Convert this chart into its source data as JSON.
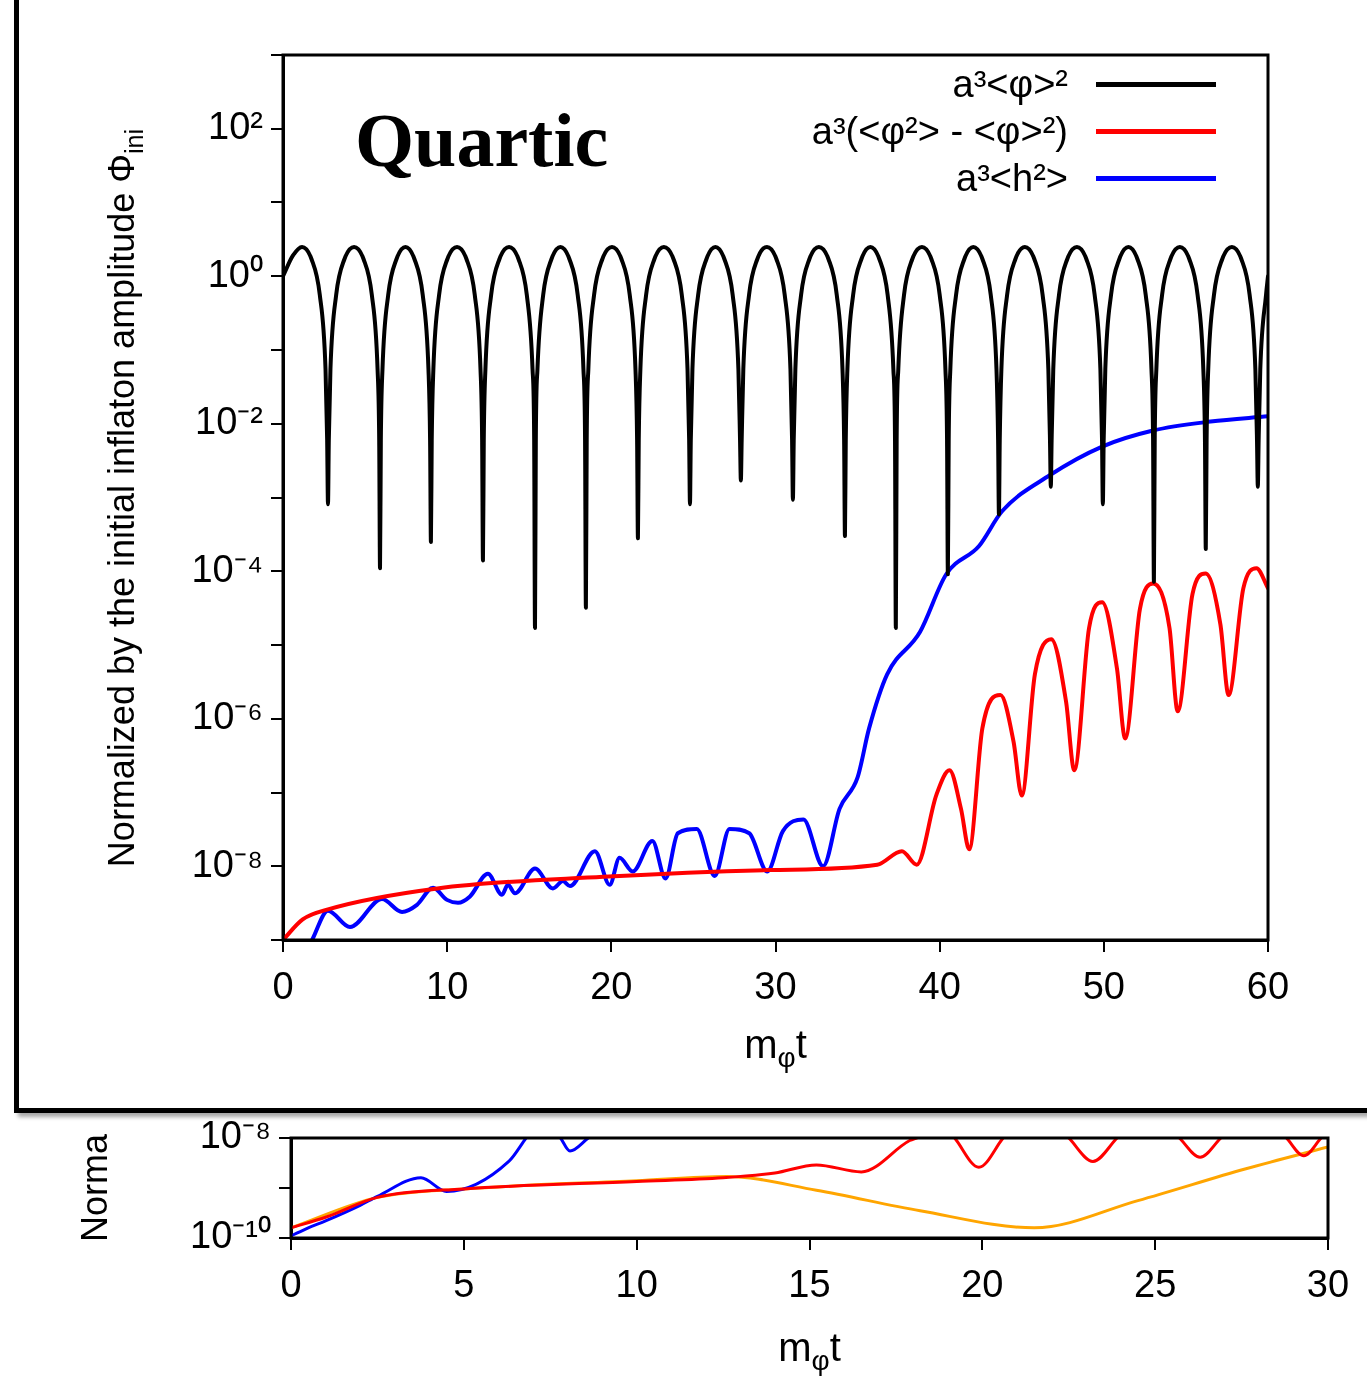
{
  "chart_data": [
    {
      "type": "line",
      "xlabel": "m$_{φ}$t",
      "ylabel": "Normalized by the initial inflaton amplitude Φ$_{ini}$",
      "annotations": [
        "Quartic"
      ],
      "log": "y",
      "legend": "top right",
      "xlim": [
        0,
        60
      ],
      "xticks": [
        0,
        10,
        20,
        30,
        40,
        50,
        60
      ],
      "ylim": [
        1e-09,
        1000
      ],
      "yticks": [
        {
          "value": 1e-09,
          "label": null
        },
        {
          "value": 1e-08,
          "label": "10⁻⁸"
        },
        {
          "value": 1e-07,
          "label": null
        },
        {
          "value": 1e-06,
          "label": "10⁻⁶"
        },
        {
          "value": 1e-05,
          "label": null
        },
        {
          "value": 0.0001,
          "label": "10⁻⁴"
        },
        {
          "value": 0.001,
          "label": null
        },
        {
          "value": 0.01,
          "label": "10⁻²"
        },
        {
          "value": 0.1,
          "label": null
        },
        {
          "value": 1,
          "label": "10⁰"
        },
        {
          "value": 10,
          "label": null
        },
        {
          "value": 100,
          "label": "10²"
        },
        {
          "value": 1000,
          "label": null
        }
      ],
      "series": [
        {
          "name": "a³<φ>²",
          "color": "#000000",
          "x": [
            0,
            0.6,
            1.16,
            1.74,
            2.24,
            2.59,
            2.69,
            2.74,
            2.79,
            2.89,
            3.24,
            3.74,
            4.33,
            4.91,
            5.41,
            5.76,
            5.86,
            5.91,
            5.96,
            6.06,
            6.41,
            6.91,
            7.46,
            8.01,
            8.51,
            8.86,
            8.96,
            9.01,
            9.06,
            9.16,
            9.51,
            10.01,
            10.6,
            11.18,
            11.68,
            12.03,
            12.13,
            12.18,
            12.23,
            12.33,
            12.68,
            13.18,
            13.77,
            14.35,
            14.85,
            15.2,
            15.3,
            15.35,
            15.4,
            15.5,
            15.85,
            16.35,
            16.9,
            17.45,
            17.95,
            18.3,
            18.4,
            18.45,
            18.5,
            18.6,
            18.95,
            19.45,
            20.04,
            20.62,
            21.12,
            21.47,
            21.57,
            21.62,
            21.67,
            21.77,
            22.12,
            22.62,
            23.2,
            23.79,
            24.29,
            24.64,
            24.74,
            24.79,
            24.84,
            24.94,
            25.29,
            25.79,
            26.34,
            26.89,
            27.39,
            27.74,
            27.84,
            27.89,
            27.94,
            28.04,
            28.39,
            28.89,
            29.48,
            30.06,
            30.56,
            30.91,
            31.01,
            31.06,
            31.11,
            31.21,
            31.56,
            32.06,
            32.64,
            33.23,
            33.73,
            34.08,
            34.18,
            34.23,
            34.28,
            34.38,
            34.73,
            35.23,
            35.78,
            36.33,
            36.83,
            37.18,
            37.28,
            37.33,
            37.38,
            37.48,
            37.83,
            38.33,
            38.92,
            39.5,
            40,
            40.35,
            40.45,
            40.5,
            40.55,
            40.65,
            41,
            41.5,
            42.05,
            42.61,
            43.11,
            43.46,
            43.56,
            43.61,
            43.66,
            43.76,
            44.11,
            44.61,
            45.19,
            45.77,
            46.27,
            46.62,
            46.72,
            46.77,
            46.82,
            46.92,
            47.27,
            47.77,
            48.36,
            48.94,
            49.44,
            49.79,
            49.89,
            49.94,
            49.99,
            50.09,
            50.44,
            50.94,
            51.5,
            52.05,
            52.55,
            52.9,
            53,
            53.05,
            53.1,
            53.2,
            53.55,
            54.05,
            54.63,
            55.21,
            55.71,
            56.06,
            56.16,
            56.21,
            56.26,
            56.36,
            56.71,
            57.21,
            57.8,
            58.38,
            58.88,
            59.23,
            59.33,
            59.38,
            59.43,
            59.53,
            59.88,
            60
          ],
          "values": [
            1,
            1.9,
            2.5,
            1.7,
            0.56,
            0.055,
            0.006,
            0.00081,
            0.006,
            0.055,
            0.56,
            1.7,
            2.5,
            1.7,
            0.56,
            0.055,
            0.006,
            0.00011,
            0.006,
            0.055,
            0.56,
            1.7,
            2.5,
            1.7,
            0.56,
            0.055,
            0.006,
            0.00025,
            0.006,
            0.055,
            0.56,
            1.7,
            2.5,
            1.7,
            0.56,
            0.055,
            0.006,
            0.00014,
            0.006,
            0.055,
            0.56,
            1.7,
            2.5,
            1.7,
            0.56,
            0.055,
            0.006,
            1.7e-05,
            0.006,
            0.055,
            0.56,
            1.7,
            2.5,
            1.7,
            0.56,
            0.055,
            0.006,
            3.2e-05,
            0.006,
            0.055,
            0.56,
            1.7,
            2.5,
            1.7,
            0.56,
            0.055,
            0.006,
            0.00028,
            0.006,
            0.055,
            0.56,
            1.7,
            2.5,
            1.7,
            0.56,
            0.055,
            0.006,
            0.00081,
            0.006,
            0.055,
            0.56,
            1.7,
            2.5,
            1.7,
            0.56,
            0.055,
            0.006,
            0.0017,
            0.006,
            0.055,
            0.56,
            1.7,
            2.5,
            1.7,
            0.56,
            0.055,
            0.006,
            0.00093,
            0.006,
            0.055,
            0.56,
            1.7,
            2.5,
            1.7,
            0.56,
            0.055,
            0.006,
            0.0003,
            0.006,
            0.055,
            0.56,
            1.7,
            2.5,
            1.7,
            0.56,
            0.055,
            0.006,
            1.7e-05,
            0.006,
            0.055,
            0.56,
            1.7,
            2.5,
            1.7,
            0.56,
            0.055,
            0.006,
            9.1e-05,
            0.006,
            0.055,
            0.56,
            1.7,
            2.5,
            1.7,
            0.56,
            0.055,
            0.006,
            0.00059,
            0.006,
            0.055,
            0.56,
            1.7,
            2.5,
            1.7,
            0.56,
            0.055,
            0.006,
            0.0014,
            0.006,
            0.055,
            0.56,
            1.7,
            2.5,
            1.7,
            0.56,
            0.055,
            0.006,
            0.00081,
            0.006,
            0.055,
            0.56,
            1.7,
            2.5,
            1.7,
            0.56,
            0.055,
            0.006,
            7.2e-05,
            0.006,
            0.055,
            0.56,
            1.7,
            2.5,
            1.7,
            0.56,
            0.055,
            0.006,
            0.0002,
            0.006,
            0.055,
            0.56,
            1.7,
            2.5,
            1.7,
            0.56,
            0.055,
            0.006,
            0.0014,
            0.006,
            0.055,
            0.56,
            1
          ]
        },
        {
          "name": "a³(<φ²> - <φ>²)",
          "color": "#ff0000",
          "x": [
            0,
            1.2,
            2.74,
            9.4,
            19.5,
            29.7,
            36.2,
            37.7,
            38.6,
            39.8,
            40.6,
            41.3,
            41.8,
            42.6,
            43.7,
            44.5,
            45,
            45.8,
            46.8,
            47.7,
            48.2,
            49.1,
            49.9,
            50.8,
            51.3,
            52.2,
            53,
            54,
            54.5,
            55.4,
            56.2,
            57.1,
            57.6,
            58.5,
            59.3,
            60
          ],
          "values": [
            1e-09,
            1.9e-09,
            2.6e-09,
            5e-09,
            7.2e-09,
            8.9e-09,
            1.05e-08,
            1.6e-08,
            1.05e-08,
            9.3e-08,
            2e-07,
            6e-08,
            1.7e-08,
            7.4e-07,
            2.1e-06,
            4.9e-07,
            9.1e-08,
            4e-06,
            1.2e-05,
            1.7e-06,
            2e-07,
            1.7e-05,
            3.8e-05,
            4.8e-06,
            5.4e-07,
            3.1e-05,
            6.8e-05,
            1.7e-05,
            1.26e-06,
            4.9e-05,
            9.3e-05,
            1.9e-05,
            2.1e-06,
            5.9e-05,
            0.00011,
            5.9e-05
          ]
        },
        {
          "name": "a³<h²>",
          "color": "#0000ff",
          "x": [
            1.77,
            2.74,
            4.08,
            6.03,
            7.25,
            8.16,
            9.14,
            9.99,
            10.66,
            11.39,
            12.48,
            13.34,
            13.7,
            14.13,
            15.35,
            16.44,
            17.05,
            17.48,
            19,
            19.9,
            20.5,
            21.3,
            22.5,
            23.3,
            24.05,
            25.2,
            26.3,
            27.2,
            28.4,
            29.5,
            30.45,
            31.7,
            32.9,
            33.9,
            35,
            35.7,
            36.8,
            38.8,
            40.4,
            42.4,
            43.8,
            46.7,
            49.9,
            53,
            56.5,
            60
          ],
          "values": [
            1e-09,
            2.5e-09,
            1.5e-09,
            3.6e-09,
            2.4e-09,
            3e-09,
            5.1e-09,
            3.5e-09,
            3.2e-09,
            3.9e-09,
            7.9e-09,
            4.1e-09,
            5.6e-09,
            4.3e-09,
            9.3e-09,
            5e-09,
            6.3e-09,
            5.4e-09,
            1.6e-08,
            5.6e-09,
            1.3e-08,
            8.5e-09,
            2.2e-08,
            6.8e-09,
            2.8e-08,
            3.2e-08,
            7.4e-09,
            3.2e-08,
            2.8e-08,
            8.5e-09,
            3e-08,
            4.3e-08,
            1e-08,
            6e-08,
            1.6e-07,
            7.4e-07,
            4e-06,
            1.5e-05,
            9.1e-05,
            0.00022,
            0.00065,
            0.002,
            0.0049,
            0.0081,
            0.0107,
            0.0126
          ]
        }
      ]
    },
    {
      "type": "line",
      "xlabel": "m$_{φ}$t",
      "ylabel": "Norma",
      "log": "y",
      "xlim": [
        0,
        30
      ],
      "xticks": [
        0,
        5,
        10,
        15,
        20,
        25,
        30
      ],
      "ylim": [
        1e-10,
        1e-08
      ],
      "yticks": [
        {
          "value": 1e-10,
          "label": "10⁻¹⁰"
        },
        {
          "value": 1e-09,
          "label": null
        },
        {
          "value": 1e-08,
          "label": "10⁻⁸"
        }
      ],
      "series": [
        {
          "color": "#ff0000",
          "x": [
            0,
            1,
            2.5,
            5,
            10,
            12.5,
            14,
            15.2,
            16.5,
            17.9,
            18.1,
            18.8,
            19.2,
            19.9,
            20.6,
            21.6,
            22.5,
            23.2,
            23.9,
            24.8,
            25.7,
            26.3,
            26.9,
            27.9,
            28.8,
            29.3,
            29.8
          ],
          "values": [
            1.6e-10,
            2.6e-10,
            6.5e-10,
            9.6e-10,
            1.35e-09,
            1.6e-09,
            2e-09,
            2.9e-09,
            2.1e-09,
            8.9e-09,
            1e-08,
            null,
            1e-08,
            2.6e-09,
            1e-08,
            null,
            1e-08,
            3.4e-09,
            1e-08,
            null,
            1e-08,
            4.1e-09,
            1e-08,
            null,
            1e-08,
            4.4e-09,
            1e-08
          ]
        },
        {
          "color": "#0000ff",
          "x": [
            0,
            0.5,
            1,
            2,
            2.5,
            3.76,
            4.5,
            6.3,
            6.8,
            7.3,
            7.8,
            8.07,
            8.6
          ],
          "values": [
            1.1e-10,
            1.6e-10,
            2.2e-10,
            4.5e-10,
            6.8e-10,
            1.6e-09,
            8.5e-10,
            3.4e-09,
            1e-08,
            null,
            1e-08,
            5.5e-09,
            1e-08
          ]
        },
        {
          "color": "#ffa500",
          "x": [
            0,
            2.5,
            5,
            10,
            12.6,
            15.2,
            18.2,
            21.5,
            24.5,
            27.6,
            30
          ],
          "values": [
            1.6e-10,
            6.5e-10,
            9.6e-10,
            1.4e-09,
            1.7e-09,
            9e-10,
            3.5e-10,
            1.6e-10,
            5.6e-10,
            2.4e-09,
            6.6e-09
          ]
        }
      ]
    }
  ]
}
